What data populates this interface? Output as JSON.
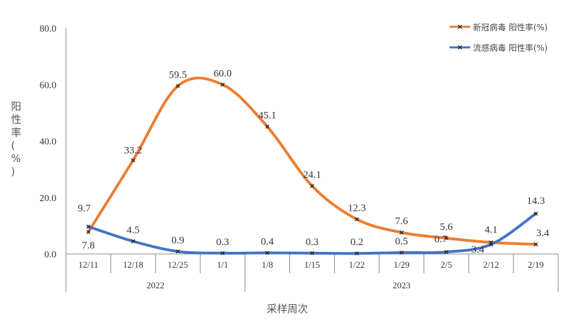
{
  "chart_data": {
    "type": "line",
    "categories": [
      "12/11",
      "12/18",
      "12/25",
      "1/1",
      "1/8",
      "1/15",
      "1/22",
      "1/29",
      "2/5",
      "2/12",
      "2/19"
    ],
    "year_groups": [
      {
        "label": "2022",
        "span": 4
      },
      {
        "label": "2023",
        "span": 7
      }
    ],
    "series": [
      {
        "name": "新冠病毒 阳性率(%)",
        "color": "#ED7D31",
        "values": [
          7.8,
          33.2,
          59.5,
          60.0,
          45.1,
          24.1,
          12.3,
          7.6,
          5.6,
          4.1,
          3.4
        ]
      },
      {
        "name": "流感病毒 阳性率(%)",
        "color": "#4472C4",
        "values": [
          9.7,
          4.5,
          0.9,
          0.3,
          0.4,
          0.3,
          0.2,
          0.5,
          0.7,
          3.4,
          14.3
        ]
      }
    ],
    "xlabel": "采样周次",
    "ylabel": "阳性率(%)",
    "ylim": [
      0,
      80
    ],
    "yticks": [
      "0.0",
      "20.0",
      "40.0",
      "60.0",
      "80.0"
    ],
    "grid": false,
    "legend": "top-right"
  }
}
